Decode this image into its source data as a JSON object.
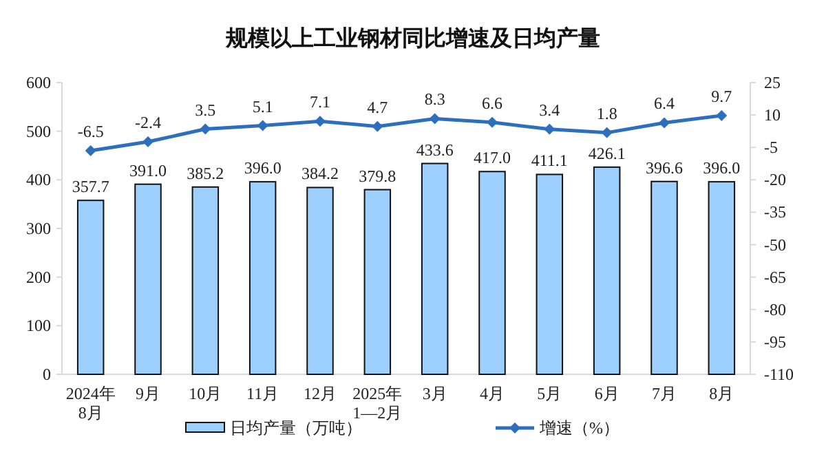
{
  "chart_data": {
    "type": "bar",
    "title": "规模以上工业钢材同比增速及日均产量",
    "categories": [
      "2024年\n8月",
      "9月",
      "10月",
      "11月",
      "12月",
      "2025年\n1—2月",
      "3月",
      "4月",
      "5月",
      "6月",
      "7月",
      "8月"
    ],
    "series": [
      {
        "name": "日均产量（万吨）",
        "color": "#9dcfff",
        "values": [
          357.7,
          391.0,
          385.2,
          396.0,
          384.2,
          379.8,
          433.6,
          417.0,
          411.1,
          426.1,
          396.6,
          396.0
        ],
        "value_labels": [
          "357.7",
          "391.0",
          "385.2",
          "396.0",
          "384.2",
          "379.8",
          "433.6",
          "417.0",
          "411.1",
          "426.1",
          "396.6",
          "396.0"
        ]
      },
      {
        "name": "增速（%）",
        "type": "line",
        "axis": "y2",
        "color": "#2e6fbd",
        "marker": "diamond",
        "values": [
          -6.5,
          -2.4,
          3.5,
          5.1,
          7.1,
          4.7,
          8.3,
          6.6,
          3.4,
          1.8,
          6.4,
          9.7
        ]
      }
    ],
    "ylim": [
      0,
      600
    ],
    "yticks": [
      0,
      100,
      200,
      300,
      400,
      500,
      600
    ],
    "y2lim": [
      -110,
      25
    ],
    "y2ticks": [
      -110,
      -95,
      -80,
      -65,
      -50,
      -35,
      -20,
      -5,
      10,
      25
    ],
    "data_labels": true,
    "legend": "bottom"
  }
}
